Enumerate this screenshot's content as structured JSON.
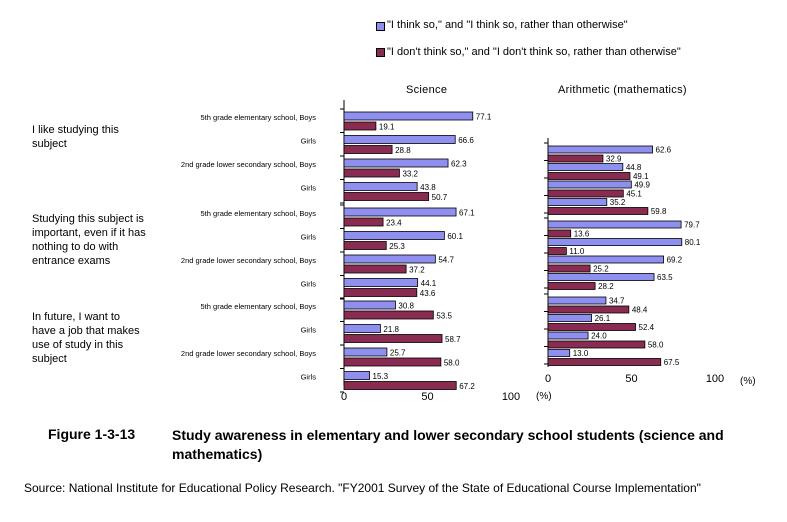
{
  "legend": [
    {
      "label": "\"I think so,\" and \"I think so, rather than otherwise\"",
      "color": "#8f8ff0"
    },
    {
      "label": "\"I don't think so,\" and \"I don't think so, rather than otherwise\"",
      "color": "#8a2b52"
    }
  ],
  "row_labels": [
    "5th grade elementary school, Boys",
    "Girls",
    "2nd grade lower secondary school, Boys",
    "Girls"
  ],
  "groups": [
    "I like studying this subject",
    "Studying this subject is important, even if it has nothing to do with entrance exams",
    "In future, I want to have a job that makes use of study in this subject"
  ],
  "caption": {
    "number": "Figure 1-3-13",
    "text": "Study awareness in elementary and lower secondary school students (science and mathematics)"
  },
  "source": "Source: National Institute for Educational Policy Research. \"FY2001 Survey of the State of Educational Course Implementation\"",
  "chart_data": [
    {
      "type": "bar",
      "orientation": "horizontal",
      "title": "Science",
      "categories": [
        "5th grade elementary school, Boys",
        "Girls",
        "2nd grade lower secondary school, Boys",
        "Girls"
      ],
      "groups": [
        "I like studying this subject",
        "Studying this subject is important, even if it has nothing to do with entrance exams",
        "In future, I want to have a job that makes use of study in this subject"
      ],
      "series": [
        {
          "name": "\"I think so,\" and \"I think so, rather than otherwise\"",
          "values": [
            [
              77.1,
              66.6,
              62.3,
              43.8
            ],
            [
              67.1,
              60.1,
              54.7,
              44.1
            ],
            [
              30.8,
              21.8,
              25.7,
              15.3
            ]
          ]
        },
        {
          "name": "\"I don't think so,\" and \"I don't think so, rather than otherwise\"",
          "values": [
            [
              19.1,
              28.8,
              33.2,
              50.7
            ],
            [
              23.4,
              25.3,
              37.2,
              43.6
            ],
            [
              53.5,
              58.7,
              58.0,
              67.2
            ]
          ]
        }
      ],
      "xlim": [
        0,
        100
      ],
      "xticks": [
        "0",
        "50",
        "100"
      ],
      "unit_label": "(%)"
    },
    {
      "type": "bar",
      "orientation": "horizontal",
      "title": "Arithmetic (mathematics)",
      "categories": [
        "5th grade elementary school, Boys",
        "Girls",
        "2nd grade lower secondary school, Boys",
        "Girls"
      ],
      "groups": [
        "I like studying this subject",
        "Studying this subject is important, even if it has nothing to do with entrance exams",
        "In future, I want to have a job that makes use of study in this subject"
      ],
      "series": [
        {
          "name": "\"I think so,\" and \"I think so, rather than otherwise\"",
          "values": [
            [
              62.6,
              44.8,
              49.9,
              35.2
            ],
            [
              79.7,
              80.1,
              69.2,
              63.5
            ],
            [
              34.7,
              26.1,
              24.0,
              13.0
            ]
          ]
        },
        {
          "name": "\"I don't think so,\" and \"I don't think so, rather than otherwise\"",
          "values": [
            [
              32.9,
              49.1,
              45.1,
              59.8
            ],
            [
              13.6,
              11.0,
              25.2,
              28.2
            ],
            [
              48.4,
              52.4,
              58.0,
              67.5
            ]
          ]
        }
      ],
      "xlim": [
        0,
        100
      ],
      "xticks": [
        "0",
        "50",
        "100"
      ],
      "unit_label": "(%)"
    }
  ]
}
